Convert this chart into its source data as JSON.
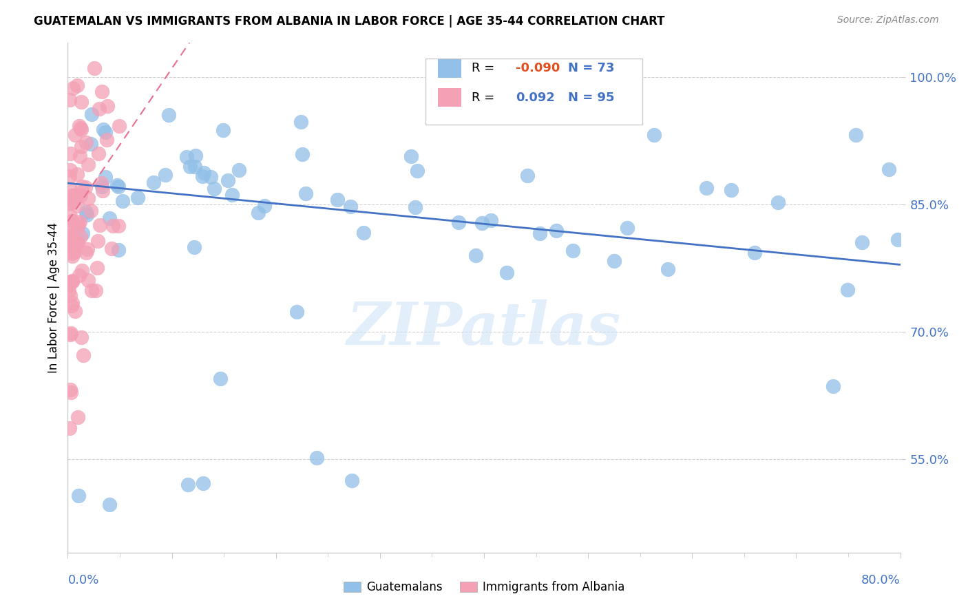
{
  "title": "GUATEMALAN VS IMMIGRANTS FROM ALBANIA IN LABOR FORCE | AGE 35-44 CORRELATION CHART",
  "source": "Source: ZipAtlas.com",
  "ylabel": "In Labor Force | Age 35-44",
  "yticks": [
    "55.0%",
    "70.0%",
    "85.0%",
    "100.0%"
  ],
  "ytick_vals": [
    0.55,
    0.7,
    0.85,
    1.0
  ],
  "xlim": [
    0.0,
    0.8
  ],
  "ylim": [
    0.44,
    1.04
  ],
  "R_guatemalan": -0.09,
  "N_guatemalan": 73,
  "R_albania": 0.092,
  "N_albania": 95,
  "blue_color": "#92C0E8",
  "pink_color": "#F4A0B5",
  "blue_line_color": "#4472C4",
  "pink_line_color": "#E87090",
  "watermark": "ZIPatlas",
  "legend_R_color": "#4472C4",
  "neg_R_color": "#E05020",
  "seed": 12345
}
